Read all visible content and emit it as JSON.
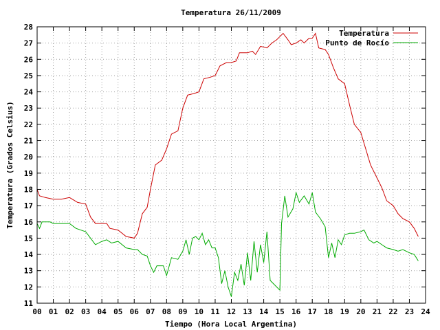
{
  "chart_data": {
    "type": "line",
    "title": "Temperatura 26/11/2009",
    "xlabel": "Tiempo (Hora Local Argentina)",
    "ylabel": "Temperatura (Grados Celsius)",
    "xlim": [
      0,
      24
    ],
    "ylim": [
      11,
      28
    ],
    "x_ticks": [
      0,
      1,
      2,
      3,
      4,
      5,
      6,
      7,
      8,
      9,
      10,
      11,
      12,
      13,
      14,
      15,
      16,
      17,
      18,
      19,
      20,
      21,
      22,
      23,
      24
    ],
    "x_tick_labels": [
      "00",
      "01",
      "02",
      "03",
      "04",
      "05",
      "06",
      "07",
      "08",
      "09",
      "10",
      "11",
      "12",
      "13",
      "14",
      "15",
      "16",
      "17",
      "18",
      "19",
      "20",
      "21",
      "22",
      "23",
      "24"
    ],
    "y_ticks": [
      11,
      12,
      13,
      14,
      15,
      16,
      17,
      18,
      19,
      20,
      21,
      22,
      23,
      24,
      25,
      26,
      27,
      28
    ],
    "grid": true,
    "legend_position": "top-right",
    "series": [
      {
        "name": "Temperatura",
        "color": "#cc0000",
        "points": [
          [
            0.0,
            18.0
          ],
          [
            0.15,
            17.6
          ],
          [
            0.5,
            17.5
          ],
          [
            1.0,
            17.4
          ],
          [
            1.5,
            17.4
          ],
          [
            2.0,
            17.5
          ],
          [
            2.5,
            17.2
          ],
          [
            3.0,
            17.1
          ],
          [
            3.3,
            16.3
          ],
          [
            3.6,
            15.9
          ],
          [
            4.0,
            15.9
          ],
          [
            4.3,
            15.9
          ],
          [
            4.5,
            15.6
          ],
          [
            5.0,
            15.5
          ],
          [
            5.5,
            15.1
          ],
          [
            6.0,
            15.0
          ],
          [
            6.2,
            15.3
          ],
          [
            6.5,
            16.5
          ],
          [
            6.8,
            16.9
          ],
          [
            7.0,
            18.0
          ],
          [
            7.3,
            19.5
          ],
          [
            7.7,
            19.8
          ],
          [
            8.0,
            20.5
          ],
          [
            8.3,
            21.4
          ],
          [
            8.7,
            21.6
          ],
          [
            9.0,
            23.0
          ],
          [
            9.3,
            23.8
          ],
          [
            9.7,
            23.9
          ],
          [
            10.0,
            24.0
          ],
          [
            10.3,
            24.8
          ],
          [
            10.7,
            24.9
          ],
          [
            11.0,
            25.0
          ],
          [
            11.3,
            25.6
          ],
          [
            11.7,
            25.8
          ],
          [
            12.0,
            25.8
          ],
          [
            12.3,
            25.9
          ],
          [
            12.5,
            26.4
          ],
          [
            13.0,
            26.4
          ],
          [
            13.3,
            26.5
          ],
          [
            13.5,
            26.3
          ],
          [
            13.8,
            26.8
          ],
          [
            14.2,
            26.7
          ],
          [
            14.5,
            27.0
          ],
          [
            14.8,
            27.2
          ],
          [
            15.0,
            27.4
          ],
          [
            15.2,
            27.6
          ],
          [
            15.5,
            27.2
          ],
          [
            15.7,
            26.9
          ],
          [
            16.0,
            27.0
          ],
          [
            16.3,
            27.2
          ],
          [
            16.5,
            27.0
          ],
          [
            16.8,
            27.3
          ],
          [
            17.0,
            27.3
          ],
          [
            17.2,
            27.6
          ],
          [
            17.4,
            26.7
          ],
          [
            17.8,
            26.6
          ],
          [
            18.0,
            26.3
          ],
          [
            18.3,
            25.5
          ],
          [
            18.6,
            24.8
          ],
          [
            19.0,
            24.5
          ],
          [
            19.3,
            23.2
          ],
          [
            19.6,
            22.0
          ],
          [
            20.0,
            21.5
          ],
          [
            20.3,
            20.5
          ],
          [
            20.6,
            19.5
          ],
          [
            21.0,
            18.7
          ],
          [
            21.3,
            18.1
          ],
          [
            21.6,
            17.3
          ],
          [
            22.0,
            17.0
          ],
          [
            22.3,
            16.5
          ],
          [
            22.6,
            16.2
          ],
          [
            23.0,
            16.0
          ],
          [
            23.3,
            15.6
          ],
          [
            23.55,
            15.1
          ]
        ]
      },
      {
        "name": "Punto de Rocío",
        "color": "#00aa00",
        "points": [
          [
            0.0,
            15.9
          ],
          [
            0.15,
            15.6
          ],
          [
            0.3,
            16.0
          ],
          [
            0.8,
            16.0
          ],
          [
            1.0,
            15.9
          ],
          [
            1.5,
            15.9
          ],
          [
            2.0,
            15.9
          ],
          [
            2.4,
            15.6
          ],
          [
            3.0,
            15.4
          ],
          [
            3.3,
            15.0
          ],
          [
            3.6,
            14.6
          ],
          [
            4.0,
            14.8
          ],
          [
            4.3,
            14.9
          ],
          [
            4.6,
            14.7
          ],
          [
            5.0,
            14.8
          ],
          [
            5.5,
            14.4
          ],
          [
            6.0,
            14.3
          ],
          [
            6.2,
            14.3
          ],
          [
            6.5,
            14.0
          ],
          [
            6.8,
            13.9
          ],
          [
            7.0,
            13.3
          ],
          [
            7.2,
            12.9
          ],
          [
            7.4,
            13.3
          ],
          [
            7.8,
            13.3
          ],
          [
            8.0,
            12.7
          ],
          [
            8.3,
            13.8
          ],
          [
            8.7,
            13.7
          ],
          [
            9.0,
            14.2
          ],
          [
            9.2,
            14.9
          ],
          [
            9.4,
            14.0
          ],
          [
            9.6,
            15.0
          ],
          [
            9.8,
            15.1
          ],
          [
            10.0,
            14.9
          ],
          [
            10.2,
            15.3
          ],
          [
            10.4,
            14.6
          ],
          [
            10.6,
            14.9
          ],
          [
            10.8,
            14.4
          ],
          [
            11.0,
            14.4
          ],
          [
            11.2,
            13.8
          ],
          [
            11.4,
            12.2
          ],
          [
            11.6,
            13.0
          ],
          [
            11.8,
            12.0
          ],
          [
            12.0,
            11.4
          ],
          [
            12.2,
            12.9
          ],
          [
            12.4,
            12.4
          ],
          [
            12.6,
            13.4
          ],
          [
            12.8,
            12.1
          ],
          [
            13.0,
            14.1
          ],
          [
            13.2,
            12.4
          ],
          [
            13.4,
            14.8
          ],
          [
            13.6,
            12.9
          ],
          [
            13.8,
            14.6
          ],
          [
            14.0,
            13.5
          ],
          [
            14.2,
            15.4
          ],
          [
            14.4,
            12.4
          ],
          [
            14.6,
            12.2
          ],
          [
            14.8,
            12.0
          ],
          [
            15.0,
            11.8
          ],
          [
            15.1,
            15.9
          ],
          [
            15.3,
            17.6
          ],
          [
            15.5,
            16.3
          ],
          [
            15.8,
            16.8
          ],
          [
            16.0,
            17.8
          ],
          [
            16.2,
            17.2
          ],
          [
            16.5,
            17.6
          ],
          [
            16.8,
            17.1
          ],
          [
            17.0,
            17.8
          ],
          [
            17.2,
            16.6
          ],
          [
            17.5,
            16.2
          ],
          [
            17.8,
            15.7
          ],
          [
            18.0,
            13.8
          ],
          [
            18.2,
            14.7
          ],
          [
            18.4,
            13.8
          ],
          [
            18.6,
            14.9
          ],
          [
            18.8,
            14.6
          ],
          [
            19.0,
            15.2
          ],
          [
            19.3,
            15.3
          ],
          [
            19.6,
            15.3
          ],
          [
            20.0,
            15.4
          ],
          [
            20.2,
            15.5
          ],
          [
            20.5,
            14.9
          ],
          [
            20.8,
            14.7
          ],
          [
            21.0,
            14.8
          ],
          [
            21.3,
            14.6
          ],
          [
            21.6,
            14.4
          ],
          [
            22.0,
            14.3
          ],
          [
            22.3,
            14.2
          ],
          [
            22.6,
            14.3
          ],
          [
            23.0,
            14.1
          ],
          [
            23.3,
            14.0
          ],
          [
            23.55,
            13.6
          ]
        ]
      }
    ]
  }
}
